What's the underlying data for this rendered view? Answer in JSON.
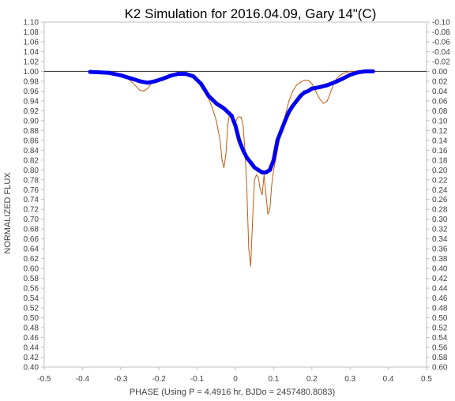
{
  "chart_data": {
    "type": "line",
    "title": "K2 Simulation for 2016.04.09, Gary 14\"(C)",
    "xlabel": "PHASE (Using P = 4.4916 hr, BJDo = 2457480.8083)",
    "ylabel": "NORMALIZED FLUX",
    "xlim": [
      -0.5,
      0.5
    ],
    "ylim": [
      0.4,
      1.1
    ],
    "y2lim": [
      -0.1,
      0.6
    ],
    "y2_reversed": true,
    "grid": false,
    "legend": "none",
    "x_ticks": [
      "-0.5",
      "-0.4",
      "-0.3",
      "-0.2",
      "-0.1",
      "0",
      "0.1",
      "0.2",
      "0.3",
      "0.4",
      "0.5"
    ],
    "x_tick_values": [
      -0.5,
      -0.4,
      -0.3,
      -0.2,
      -0.1,
      0,
      0.1,
      0.2,
      0.3,
      0.4,
      0.5
    ],
    "y_ticks": [
      "0.40",
      "0.42",
      "0.44",
      "0.46",
      "0.48",
      "0.50",
      "0.52",
      "0.54",
      "0.56",
      "0.58",
      "0.60",
      "0.62",
      "0.64",
      "0.66",
      "0.68",
      "0.70",
      "0.72",
      "0.74",
      "0.76",
      "0.78",
      "0.80",
      "0.82",
      "0.84",
      "0.86",
      "0.88",
      "0.90",
      "0.92",
      "0.94",
      "0.96",
      "0.98",
      "1.00",
      "1.02",
      "1.04",
      "1.06",
      "1.08",
      "1.10"
    ],
    "y2_ticks": [
      "0.60",
      "0.58",
      "0.56",
      "0.54",
      "0.52",
      "0.50",
      "0.48",
      "0.46",
      "0.44",
      "0.42",
      "0.40",
      "0.38",
      "0.36",
      "0.34",
      "0.32",
      "0.30",
      "0.28",
      "0.26",
      "0.24",
      "0.22",
      "0.20",
      "0.18",
      "0.16",
      "0.14",
      "0.12",
      "0.10",
      "0.08",
      "0.06",
      "0.04",
      "0.02",
      "0.00",
      "-0.02",
      "-0.04",
      "-0.06",
      "-0.08",
      "-0.10"
    ],
    "reference_line": {
      "y": 1.0,
      "color": "#404040"
    },
    "series": [
      {
        "color": "#c55a11",
        "width": 1,
        "x": [
          -0.38,
          -0.34,
          -0.3,
          -0.28,
          -0.26,
          -0.25,
          -0.24,
          -0.23,
          -0.22,
          -0.2,
          -0.18,
          -0.16,
          -0.14,
          -0.12,
          -0.11,
          -0.1,
          -0.09,
          -0.08,
          -0.07,
          -0.06,
          -0.05,
          -0.045,
          -0.04,
          -0.035,
          -0.03,
          -0.025,
          -0.02,
          -0.015,
          -0.01,
          -0.005,
          0.0,
          0.005,
          0.01,
          0.015,
          0.02,
          0.025,
          0.03,
          0.035,
          0.04,
          0.045,
          0.05,
          0.055,
          0.06,
          0.065,
          0.07,
          0.075,
          0.08,
          0.085,
          0.09,
          0.095,
          0.1,
          0.11,
          0.12,
          0.13,
          0.14,
          0.15,
          0.16,
          0.17,
          0.18,
          0.19,
          0.2,
          0.21,
          0.22,
          0.23,
          0.24,
          0.25,
          0.26,
          0.27,
          0.28,
          0.29,
          0.3,
          0.32,
          0.34,
          0.36
        ],
        "y": [
          1.0,
          1.0,
          0.995,
          0.985,
          0.97,
          0.962,
          0.96,
          0.965,
          0.975,
          0.985,
          0.99,
          0.993,
          0.995,
          0.993,
          0.99,
          0.98,
          0.97,
          0.96,
          0.945,
          0.925,
          0.9,
          0.88,
          0.86,
          0.82,
          0.805,
          0.83,
          0.89,
          0.915,
          0.91,
          0.9,
          0.895,
          0.905,
          0.908,
          0.907,
          0.89,
          0.84,
          0.76,
          0.64,
          0.605,
          0.7,
          0.78,
          0.79,
          0.785,
          0.76,
          0.75,
          0.79,
          0.75,
          0.71,
          0.72,
          0.77,
          0.8,
          0.84,
          0.88,
          0.91,
          0.94,
          0.96,
          0.972,
          0.978,
          0.982,
          0.982,
          0.975,
          0.96,
          0.945,
          0.935,
          0.94,
          0.96,
          0.98,
          0.99,
          0.995,
          0.998,
          1.0,
          1.0,
          1.0,
          1.0
        ]
      },
      {
        "color": "#0000ee",
        "width": 5,
        "x": [
          -0.38,
          -0.33,
          -0.3,
          -0.27,
          -0.25,
          -0.23,
          -0.21,
          -0.19,
          -0.17,
          -0.15,
          -0.13,
          -0.11,
          -0.09,
          -0.07,
          -0.05,
          -0.03,
          -0.01,
          0.0,
          0.01,
          0.02,
          0.03,
          0.04,
          0.05,
          0.06,
          0.07,
          0.08,
          0.09,
          0.1,
          0.11,
          0.12,
          0.13,
          0.14,
          0.15,
          0.16,
          0.17,
          0.18,
          0.19,
          0.2,
          0.22,
          0.24,
          0.26,
          0.28,
          0.3,
          0.32,
          0.34,
          0.36
        ],
        "y": [
          0.999,
          0.997,
          0.992,
          0.985,
          0.98,
          0.977,
          0.98,
          0.985,
          0.991,
          0.995,
          0.995,
          0.99,
          0.975,
          0.95,
          0.935,
          0.925,
          0.91,
          0.89,
          0.86,
          0.84,
          0.825,
          0.815,
          0.805,
          0.8,
          0.795,
          0.795,
          0.8,
          0.82,
          0.86,
          0.88,
          0.9,
          0.918,
          0.93,
          0.94,
          0.95,
          0.957,
          0.96,
          0.965,
          0.968,
          0.972,
          0.978,
          0.985,
          0.993,
          0.998,
          1.0,
          1.0
        ]
      }
    ]
  }
}
